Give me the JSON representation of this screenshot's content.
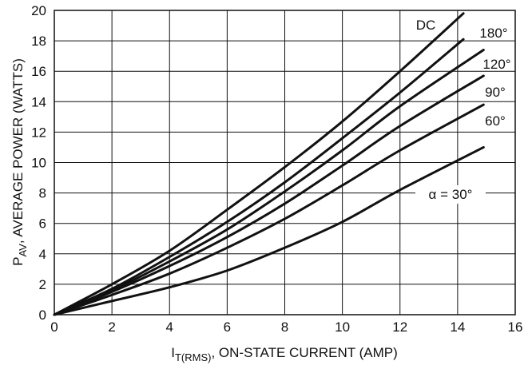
{
  "chart_data": {
    "type": "line",
    "xlabel": {
      "prefix": "I",
      "sub": "T(RMS)",
      "suffix": ", ON-STATE CURRENT (AMP)"
    },
    "ylabel": {
      "prefix": "P",
      "sub": "AV",
      "suffix": ", AVERAGE POWER (WATTS)"
    },
    "xlim": [
      0,
      16
    ],
    "ylim": [
      0,
      20
    ],
    "xticks": [
      0,
      2,
      4,
      6,
      8,
      10,
      12,
      14,
      16
    ],
    "yticks": [
      0,
      2,
      4,
      6,
      8,
      10,
      12,
      14,
      16,
      18,
      20
    ],
    "grid": true,
    "legend": "none",
    "line_color": "#111111",
    "series": [
      {
        "name": "DC",
        "x": [
          0,
          2,
          4,
          6,
          8,
          10,
          12,
          14.2
        ],
        "y": [
          0,
          2.0,
          4.2,
          6.9,
          9.7,
          12.7,
          16.0,
          19.8
        ]
      },
      {
        "name": "180°",
        "x": [
          0,
          2,
          4,
          6,
          8,
          10,
          12,
          14.2
        ],
        "y": [
          0,
          1.7,
          3.8,
          6.1,
          8.7,
          11.6,
          14.6,
          18.1
        ]
      },
      {
        "name": "120°",
        "x": [
          0,
          2,
          4,
          6,
          8,
          10,
          12,
          14.9
        ],
        "y": [
          0,
          1.6,
          3.5,
          5.6,
          8.1,
          10.8,
          13.7,
          17.4
        ]
      },
      {
        "name": "90°",
        "x": [
          0,
          2,
          4,
          6,
          8,
          10,
          12,
          14.9
        ],
        "y": [
          0,
          1.5,
          3.2,
          5.1,
          7.3,
          9.8,
          12.4,
          15.7
        ]
      },
      {
        "name": "60°",
        "x": [
          0,
          2,
          4,
          6,
          8,
          10,
          12,
          14.9
        ],
        "y": [
          0,
          1.3,
          2.7,
          4.4,
          6.3,
          8.5,
          10.8,
          13.8
        ]
      },
      {
        "name": "α = 30°",
        "x": [
          0,
          2,
          4,
          6,
          8,
          10,
          12,
          14.9
        ],
        "y": [
          0,
          0.9,
          1.8,
          2.9,
          4.4,
          6.1,
          8.2,
          11.0
        ]
      }
    ]
  }
}
